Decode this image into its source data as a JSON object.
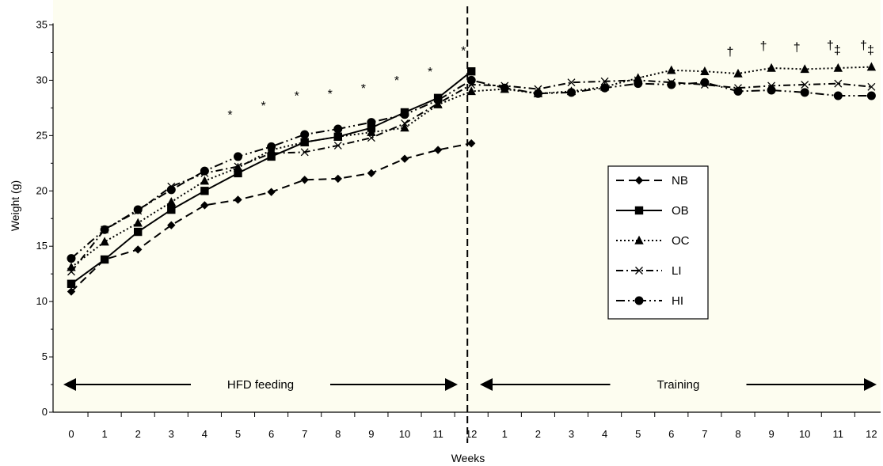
{
  "chart_data": {
    "type": "line",
    "xlabel": "Weeks",
    "ylabel": "Weight (g)",
    "ylim": [
      0,
      35
    ],
    "y_ticks": [
      "0",
      "5",
      "10",
      "15",
      "20",
      "25",
      "30",
      "35"
    ],
    "x_tick_labels": [
      "0",
      "1",
      "2",
      "3",
      "4",
      "5",
      "6",
      "7",
      "8",
      "9",
      "10",
      "11",
      "12",
      "1",
      "2",
      "3",
      "4",
      "5",
      "6",
      "7",
      "8",
      "9",
      "10",
      "11",
      "12"
    ],
    "background": "#fdfdf0",
    "grid": false,
    "legend_position": "right",
    "phases": [
      {
        "label": "HFD feeding",
        "from": 0,
        "to": 12
      },
      {
        "label": "Training",
        "from": 12,
        "to": 24
      }
    ],
    "divider_at": 12,
    "series": [
      {
        "name": "NB",
        "marker": "diamond",
        "dash": "long-dash",
        "values": [
          10.9,
          13.8,
          14.7,
          16.9,
          18.7,
          19.2,
          19.9,
          21.0,
          21.1,
          21.6,
          22.9,
          23.7,
          24.3
        ]
      },
      {
        "name": "OB",
        "marker": "square",
        "dash": "solid",
        "values": [
          11.6,
          13.8,
          16.3,
          18.3,
          20.0,
          21.6,
          23.1,
          24.4,
          24.9,
          25.7,
          27.1,
          28.4,
          30.8
        ]
      },
      {
        "name": "OC",
        "marker": "triangle",
        "dash": "dotted",
        "values": [
          13.1,
          15.4,
          17.1,
          19.0,
          20.9,
          22.1,
          23.7,
          24.4,
          24.9,
          25.3,
          25.7,
          27.8,
          29.0,
          29.2,
          28.8,
          29.0,
          29.4,
          30.2,
          30.9,
          30.8,
          30.6,
          31.1,
          31.0,
          31.1,
          31.2
        ]
      },
      {
        "name": "LI",
        "marker": "cross",
        "dash": "dash-dot",
        "values": [
          12.7,
          16.5,
          18.2,
          20.4,
          21.6,
          22.2,
          23.4,
          23.5,
          24.1,
          24.8,
          26.1,
          27.9,
          29.6,
          29.5,
          29.2,
          29.8,
          29.9,
          30.0,
          29.8,
          29.6,
          29.3,
          29.5,
          29.6,
          29.7,
          29.4
        ]
      },
      {
        "name": "HI",
        "marker": "circle",
        "dash": "dash-dot-dot",
        "values": [
          13.9,
          16.5,
          18.3,
          20.1,
          21.8,
          23.1,
          24.0,
          25.1,
          25.6,
          26.2,
          26.9,
          28.2,
          30.0,
          29.3,
          28.8,
          28.9,
          29.3,
          29.7,
          29.6,
          29.8,
          29.0,
          29.1,
          28.9,
          28.6,
          28.6
        ]
      }
    ],
    "annotations": [
      {
        "text": "*",
        "x": 5,
        "y": 26.5
      },
      {
        "text": "*",
        "x": 6,
        "y": 27.3
      },
      {
        "text": "*",
        "x": 7,
        "y": 28.2
      },
      {
        "text": "*",
        "x": 8,
        "y": 28.4
      },
      {
        "text": "*",
        "x": 9,
        "y": 28.9
      },
      {
        "text": "*",
        "x": 10,
        "y": 29.6
      },
      {
        "text": "*",
        "x": 11,
        "y": 30.4
      },
      {
        "text": "*",
        "x": 12,
        "y": 32.3
      },
      {
        "text": "†",
        "x": 20,
        "y": 32.2
      },
      {
        "text": "†",
        "x": 21,
        "y": 32.7
      },
      {
        "text": "†",
        "x": 22,
        "y": 32.6
      },
      {
        "text": "†‡",
        "x": 23,
        "y": 32.8
      },
      {
        "text": "†‡",
        "x": 24,
        "y": 32.8
      }
    ]
  }
}
